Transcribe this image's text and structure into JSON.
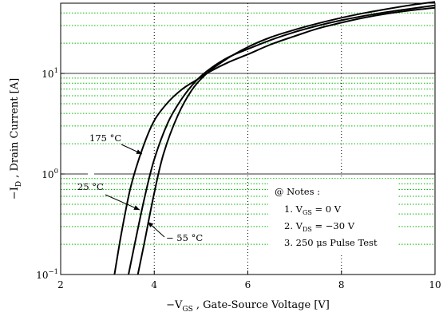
{
  "chart_data": {
    "type": "line",
    "title": "",
    "xlabel": {
      "prefix": "−V",
      "sub": "GS",
      "rest": " , Gate-Source Voltage   [V]"
    },
    "ylabel": {
      "prefix": "−I",
      "sub": "D",
      "rest": " , Drain Current   [A]"
    },
    "xlim": [
      2,
      10
    ],
    "ylim": [
      0.1,
      50
    ],
    "yscale": "log",
    "grid": true,
    "x_ticks": [
      {
        "value": 2,
        "label": "2"
      },
      {
        "value": 4,
        "label": "4"
      },
      {
        "value": 6,
        "label": "6"
      },
      {
        "value": 8,
        "label": "8"
      },
      {
        "value": 10,
        "label": "10"
      }
    ],
    "y_ticks": [
      {
        "value": 0.1,
        "base": "10",
        "exp": "−1"
      },
      {
        "value": 1,
        "base": "10",
        "exp": "0"
      },
      {
        "value": 10,
        "base": "10",
        "exp": "1"
      }
    ],
    "series": [
      {
        "name": "175 °C",
        "x": [
          3.15,
          3.3,
          3.5,
          3.75,
          4.0,
          4.3,
          4.6,
          4.9,
          5.2,
          5.6,
          6.0,
          6.5,
          7.0,
          7.5,
          8.0,
          8.5,
          9.0,
          9.5,
          10.0
        ],
        "y": [
          0.1,
          0.26,
          0.75,
          1.8,
          3.4,
          5.2,
          7.0,
          8.6,
          10.5,
          13.0,
          15.5,
          19.5,
          23.5,
          28.0,
          32.0,
          36.0,
          39.5,
          42.5,
          45.0
        ]
      },
      {
        "name": "25 °C",
        "x": [
          3.45,
          3.6,
          3.8,
          4.0,
          4.3,
          4.6,
          4.9,
          5.2,
          5.6,
          6.0,
          6.5,
          7.0,
          7.5,
          8.0,
          8.5,
          9.0,
          9.5,
          10.0
        ],
        "y": [
          0.1,
          0.22,
          0.6,
          1.4,
          3.3,
          5.7,
          8.5,
          11.2,
          14.6,
          17.5,
          21.6,
          25.8,
          29.9,
          33.8,
          37.5,
          41.0,
          44.2,
          47.5
        ]
      },
      {
        "name": "− 55 °C",
        "x": [
          3.65,
          3.8,
          4.0,
          4.2,
          4.5,
          4.8,
          5.1,
          5.5,
          6.0,
          6.5,
          7.0,
          7.5,
          8.0,
          8.5,
          9.0,
          9.5,
          10.0
        ],
        "y": [
          0.1,
          0.22,
          0.65,
          1.6,
          3.8,
          6.8,
          9.8,
          13.5,
          18.3,
          23.0,
          27.2,
          31.5,
          35.8,
          40.0,
          44.0,
          48.0,
          51.5
        ]
      }
    ],
    "annotations": [
      {
        "label": "175 °C",
        "series": 0
      },
      {
        "label": "25 °C",
        "series": 1
      },
      {
        "label": "− 55 °C",
        "series": 2
      }
    ],
    "notes": {
      "title": "@ Notes :",
      "items": [
        {
          "num": "1.",
          "prefix": "V",
          "sub": "GS",
          "rest": " = 0 V"
        },
        {
          "num": "2.",
          "prefix": "V",
          "sub": "DS",
          "rest": " = −30 V"
        },
        {
          "num": "3.",
          "prefix": "",
          "sub": "",
          "rest": "250 μs Pulse Test"
        }
      ]
    },
    "colors": {
      "major_grid": "#000000",
      "minor_grid": "#00bb00",
      "curve": "#000000"
    }
  }
}
